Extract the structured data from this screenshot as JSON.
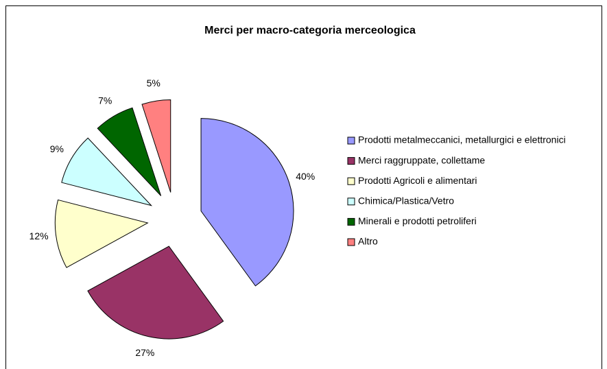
{
  "chart_data": {
    "type": "pie",
    "title": "Merci per macro-categoria merceologica",
    "categories": [
      "Prodotti metalmeccanici, metallurgici e elettronici",
      "Merci raggruppate, collettame",
      "Prodotti Agricoli e alimentari",
      "Chimica/Plastica/Vetro",
      "Minerali e prodotti petroliferi",
      "Altro"
    ],
    "values": [
      40,
      27,
      12,
      9,
      7,
      5
    ],
    "value_labels": [
      "40%",
      "27%",
      "12%",
      "9%",
      "7%",
      "5%"
    ],
    "colors": [
      "#9999ff",
      "#993366",
      "#ffffcc",
      "#ccffff",
      "#006600",
      "#ff8080"
    ],
    "legend": "right"
  }
}
